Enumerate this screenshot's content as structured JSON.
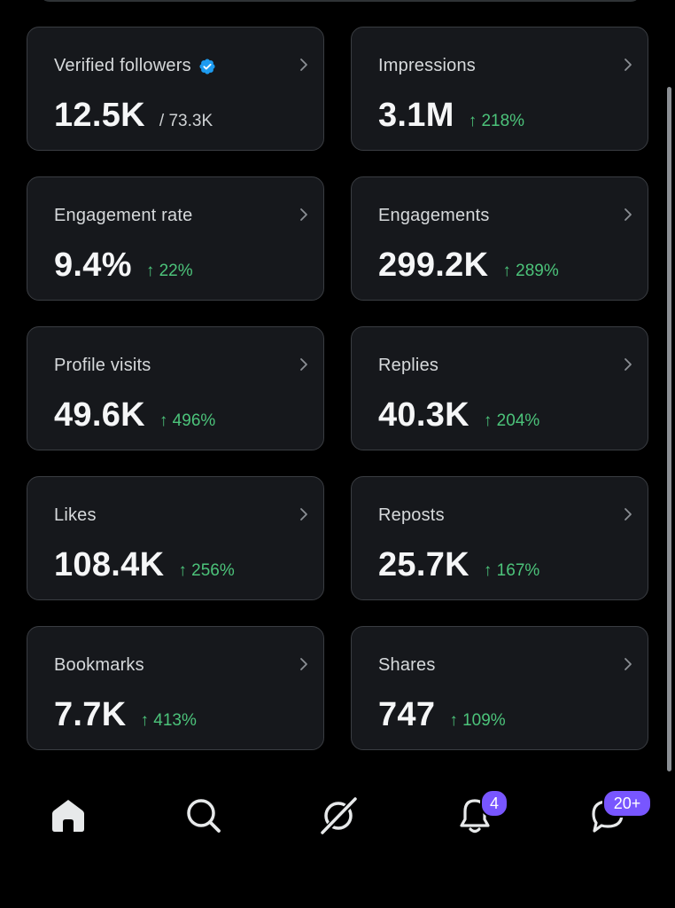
{
  "cards": [
    {
      "label": "Verified followers",
      "value": "12.5K",
      "sub": "/ 73.3K"
    },
    {
      "label": "Impressions",
      "value": "3.1M",
      "delta": "↑ 218%"
    },
    {
      "label": "Engagement rate",
      "value": "9.4%",
      "delta": "↑ 22%"
    },
    {
      "label": "Engagements",
      "value": "299.2K",
      "delta": "↑ 289%"
    },
    {
      "label": "Profile visits",
      "value": "49.6K",
      "delta": "↑ 496%"
    },
    {
      "label": "Replies",
      "value": "40.3K",
      "delta": "↑ 204%"
    },
    {
      "label": "Likes",
      "value": "108.4K",
      "delta": "↑ 256%"
    },
    {
      "label": "Reposts",
      "value": "25.7K",
      "delta": "↑ 167%"
    },
    {
      "label": "Bookmarks",
      "value": "7.7K",
      "delta": "↑ 413%"
    },
    {
      "label": "Shares",
      "value": "747",
      "delta": "↑ 109%"
    }
  ],
  "nav": {
    "notifications_badge": "4",
    "messages_badge": "20+"
  },
  "colors": {
    "background": "#000000",
    "card": "#16181c",
    "positive": "#4cc37a",
    "verified": "#1d9bf0",
    "badge": "#7856ff"
  }
}
